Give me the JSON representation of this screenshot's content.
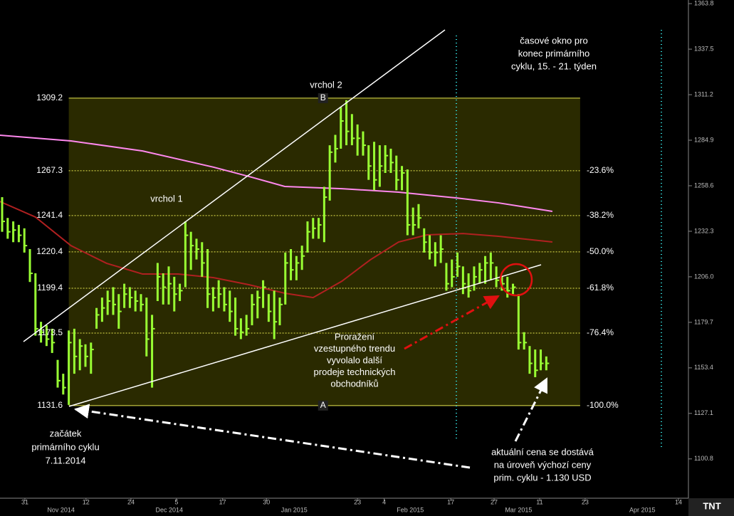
{
  "chart_data": {
    "type": "ohlc",
    "color": "#99ff33",
    "ylim": [
      1078.1,
      1365.9
    ],
    "xlim": [
      -0.385,
      123.6
    ],
    "yticks": [
      1363.8,
      1337.5,
      1311.2,
      1284.9,
      1258.6,
      1232.3,
      {
        "value": 1206.0,
        "label": "1206.0"
      },
      1179.7,
      1153.4,
      1127.1,
      1100.8
    ],
    "xticks": [
      {
        "value": 4.1,
        "label": "31"
      },
      {
        "value": 15.1,
        "label": "12"
      },
      {
        "value": 23.2,
        "label": "24"
      },
      {
        "value": 31.4,
        "label": "5"
      },
      {
        "value": 39.7,
        "label": "17"
      },
      {
        "value": 47.6,
        "label": "30"
      },
      {
        "value": 64.0,
        "label": "23"
      },
      {
        "value": 68.8,
        "label": "4"
      },
      {
        "value": 80.8,
        "label": "17"
      },
      {
        "value": 88.6,
        "label": "27"
      },
      {
        "value": 96.8,
        "label": "11"
      },
      {
        "value": 105.0,
        "label": "23"
      },
      {
        "value": 121.8,
        "label": "14"
      }
    ],
    "month_labels": [
      {
        "value": 10.6,
        "label": "Nov 2014"
      },
      {
        "value": 30.1,
        "label": "Dec 2014"
      },
      {
        "value": 52.6,
        "label": "Jan 2015"
      },
      {
        "value": 73.5,
        "label": "Feb 2015"
      },
      {
        "value": 93.0,
        "label": "Mar 2015"
      },
      {
        "value": 115.3,
        "label": "Apr 2015"
      }
    ],
    "high": [
      1252,
      1240,
      1238,
      1236,
      1234,
      1222,
      1208,
      1180,
      1178,
      1176,
      1158,
      1150,
      1175,
      1176,
      1170,
      1167,
      1168,
      1188,
      1194,
      1198,
      1200,
      1196,
      1202,
      1200,
      1198,
      1196,
      1194,
      1184,
      1214,
      1208,
      1212,
      1206,
      1202,
      1238,
      1232,
      1228,
      1226,
      1222,
      1200,
      1204,
      1200,
      1198,
      1194,
      1182,
      1184,
      1196,
      1198,
      1204,
      1196,
      1198,
      1194,
      1220,
      1222,
      1218,
      1224,
      1238,
      1240,
      1240,
      1258,
      1282,
      1288,
      1304,
      1308,
      1300,
      1294,
      1290,
      1282,
      1284,
      1282,
      1282,
      1280,
      1276,
      1270,
      1268,
      1246,
      1248,
      1234,
      1230,
      1226,
      1230,
      1214,
      1216,
      1220,
      1212,
      1208,
      1212,
      1214,
      1218,
      1220,
      1212,
      1206,
      1206,
      1202,
      1196,
      1174,
      1166,
      1164,
      1164,
      1160
    ],
    "low": [
      1232,
      1228,
      1226,
      1226,
      1220,
      1203,
      1172,
      1168,
      1166,
      1162,
      1142,
      1138,
      1132,
      1150,
      1152,
      1154,
      1150,
      1176,
      1180,
      1184,
      1184,
      1176,
      1188,
      1188,
      1186,
      1186,
      1160,
      1142,
      1192,
      1190,
      1190,
      1186,
      1192,
      1200,
      1210,
      1216,
      1206,
      1188,
      1186,
      1188,
      1186,
      1180,
      1172,
      1170,
      1172,
      1178,
      1182,
      1188,
      1180,
      1170,
      1178,
      1190,
      1204,
      1204,
      1210,
      1220,
      1228,
      1228,
      1226,
      1250,
      1272,
      1280,
      1282,
      1282,
      1276,
      1276,
      1262,
      1256,
      1258,
      1266,
      1266,
      1256,
      1256,
      1230,
      1230,
      1234,
      1220,
      1216,
      1212,
      1214,
      1198,
      1200,
      1206,
      1196,
      1194,
      1198,
      1202,
      1202,
      1204,
      1200,
      1198,
      1194,
      1196,
      1164,
      1164,
      1150,
      1148,
      1152,
      1152
    ],
    "close": [
      1238,
      1232,
      1233,
      1230,
      1224,
      1208,
      1176,
      1174,
      1170,
      1168,
      1146,
      1142,
      1168,
      1160,
      1166,
      1160,
      1164,
      1184,
      1188,
      1192,
      1190,
      1186,
      1196,
      1194,
      1192,
      1190,
      1170,
      1176,
      1206,
      1200,
      1202,
      1196,
      1198,
      1230,
      1224,
      1222,
      1214,
      1196,
      1194,
      1196,
      1190,
      1186,
      1176,
      1174,
      1176,
      1190,
      1194,
      1200,
      1186,
      1180,
      1190,
      1214,
      1210,
      1214,
      1218,
      1232,
      1234,
      1236,
      1252,
      1278,
      1280,
      1296,
      1290,
      1286,
      1286,
      1282,
      1270,
      1262,
      1270,
      1276,
      1272,
      1262,
      1266,
      1236,
      1236,
      1240,
      1226,
      1220,
      1220,
      1222,
      1202,
      1206,
      1212,
      1202,
      1198,
      1206,
      1210,
      1214,
      1214,
      1204,
      1202,
      1198,
      1200,
      1168,
      1168,
      1156,
      1152,
      1156,
      1156
    ],
    "overlays": [
      {
        "color": "#ff88ee",
        "x": [
          -0.4,
          12.4,
          25.3,
          38.1,
          44.5,
          50.9,
          61.2,
          71.4,
          81.7,
          89.4,
          99.1
        ],
        "values": [
          1287.8,
          1284.5,
          1278.7,
          1269.3,
          1263.9,
          1258.2,
          1256.9,
          1254.9,
          1251.6,
          1248.7,
          1243.8
        ]
      },
      {
        "color": "#b02020",
        "x": [
          -0.4,
          6.0,
          12.4,
          18.8,
          25.3,
          31.7,
          38.1,
          44.5,
          50.9,
          56.0,
          61.2,
          66.3,
          71.4,
          76.5,
          83.0,
          89.4,
          99.1
        ],
        "values": [
          1249.5,
          1240.5,
          1224.0,
          1213.8,
          1207.6,
          1207.6,
          1205.5,
          1201.4,
          1196.5,
          1194.0,
          1203.5,
          1215.8,
          1226.1,
          1230.2,
          1231.0,
          1229.4,
          1226.1
        ]
      }
    ],
    "fib": {
      "x": [
        12,
        104.1
      ],
      "levels": [
        1309.2,
        1267.3,
        1241.4,
        1220.4,
        1199.4,
        1173.5,
        1131.6
      ],
      "percent_labels": [
        null,
        "-23.6%",
        "-38.2%",
        "-50.0%",
        "-61.8%",
        "-76.4%",
        "-100.0%"
      ],
      "top_label": "B",
      "bottom_label": "A"
    },
    "annotations": [
      {
        "lines": [
          "vrchol 2"
        ]
      },
      {
        "lines": [
          "vrchol 1"
        ]
      },
      {
        "lines": [
          "časové okno pro",
          "konec primárního",
          "cyklu, 15. - 21. týden"
        ]
      },
      {
        "lines": [
          "Proražení",
          "vzestupného trendu",
          "vyvolalo další",
          "prodeje technických",
          "obchodníků"
        ]
      },
      {
        "lines": [
          "začátek",
          "primárního cyklu",
          "7.11.2014"
        ]
      },
      {
        "lines": [
          "aktuální cena se dostává",
          "na úroveň výchozí ceny",
          "prim. cyklu - 1.130 USD"
        ]
      }
    ],
    "logo": "TNT"
  }
}
